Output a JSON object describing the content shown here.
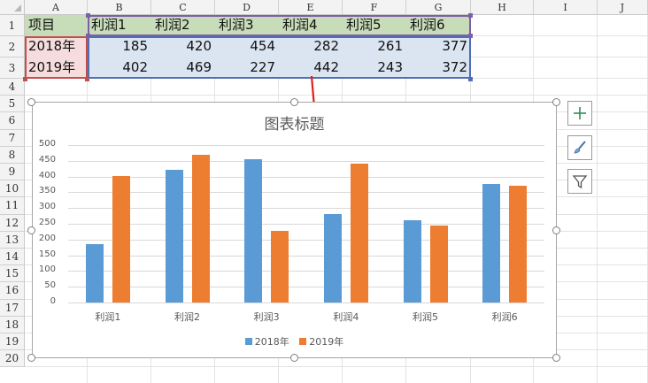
{
  "sheet": {
    "columns": [
      "A",
      "B",
      "C",
      "D",
      "E",
      "F",
      "G",
      "H",
      "I",
      "J"
    ],
    "rows": [
      "1",
      "2",
      "3",
      "4",
      "5",
      "6",
      "7",
      "8",
      "9",
      "10",
      "11",
      "12",
      "13",
      "14",
      "15",
      "16",
      "17",
      "18",
      "19",
      "20"
    ]
  },
  "table": {
    "corner_label": "项目",
    "headers": [
      "利润1",
      "利润2",
      "利润3",
      "利润4",
      "利润5",
      "利润6"
    ],
    "rows": [
      {
        "label": "2018年",
        "values": [
          "185",
          "420",
          "454",
          "282",
          "261",
          "377"
        ]
      },
      {
        "label": "2019年",
        "values": [
          "402",
          "469",
          "227",
          "442",
          "243",
          "372"
        ]
      }
    ]
  },
  "chart_data": {
    "type": "bar",
    "title": "图表标题",
    "categories": [
      "利润1",
      "利润2",
      "利润3",
      "利润4",
      "利润5",
      "利润6"
    ],
    "series": [
      {
        "name": "2018年",
        "values": [
          185,
          420,
          454,
          282,
          261,
          377
        ],
        "color": "#5b9bd5"
      },
      {
        "name": "2019年",
        "values": [
          402,
          469,
          227,
          442,
          243,
          372
        ],
        "color": "#ed7d31"
      }
    ],
    "yticks": [
      "0",
      "50",
      "100",
      "150",
      "200",
      "250",
      "300",
      "350",
      "400",
      "450",
      "500"
    ],
    "ylim": [
      0,
      500
    ],
    "grid": true,
    "legend": "bottom"
  },
  "side_buttons": [
    {
      "icon": "plus-icon"
    },
    {
      "icon": "brush-icon"
    },
    {
      "icon": "filter-icon"
    }
  ],
  "colors": {
    "header_fill": "#c7dcb8",
    "name_fill": "#f6dcdc",
    "value_fill": "#dbe4f1",
    "arrow": "#e02020"
  }
}
